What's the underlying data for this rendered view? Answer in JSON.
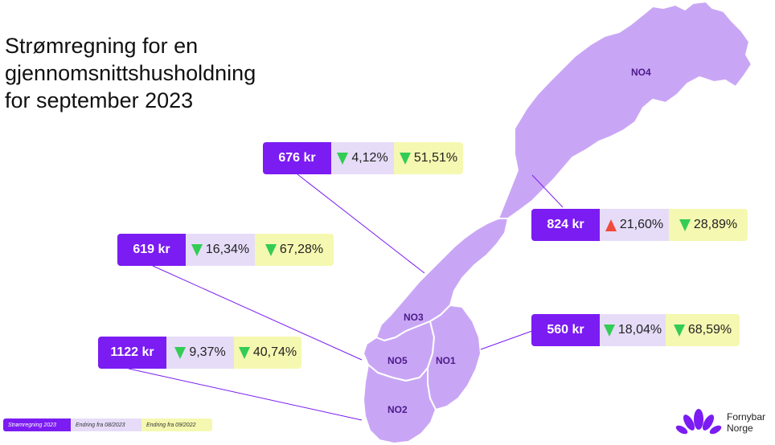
{
  "title": {
    "line1": "Strømregning for en",
    "line2": "gjennomsnittshusholdning",
    "line3": "for september 2023"
  },
  "regions": {
    "no1": "NO1",
    "no2": "NO2",
    "no3": "NO3",
    "no4": "NO4",
    "no5": "NO5"
  },
  "boxes": {
    "no3": {
      "price": "676 kr",
      "month_change": "4,12%",
      "month_dir": "down",
      "year_change": "51,51%",
      "year_dir": "down"
    },
    "no5": {
      "price": "619 kr",
      "month_change": "16,34%",
      "month_dir": "down",
      "year_change": "67,28%",
      "year_dir": "down"
    },
    "no2": {
      "price": "1122 kr",
      "month_change": "9,37%",
      "month_dir": "down",
      "year_change": "40,74%",
      "year_dir": "down"
    },
    "no4": {
      "price": "824 kr",
      "month_change": "21,60%",
      "month_dir": "up",
      "year_change": "28,89%",
      "year_dir": "down"
    },
    "no1": {
      "price": "560 kr",
      "month_change": "18,04%",
      "month_dir": "down",
      "year_change": "68,59%",
      "year_dir": "down"
    }
  },
  "legend": {
    "price": "Strømregning 2023",
    "month": "Endring fra 08/2023",
    "year": "Endring fra 09/2022"
  },
  "brand": {
    "line1": "Fornybar",
    "line2": "Norge",
    "icon": "flower-logo-icon"
  },
  "colors": {
    "purple": "#7b1cf2",
    "map": "#c9a6f5",
    "light_purple": "#e6dcf8",
    "light_yellow": "#f5f8b0",
    "arrow_down": "#33cc55",
    "arrow_up": "#f04a3a"
  }
}
